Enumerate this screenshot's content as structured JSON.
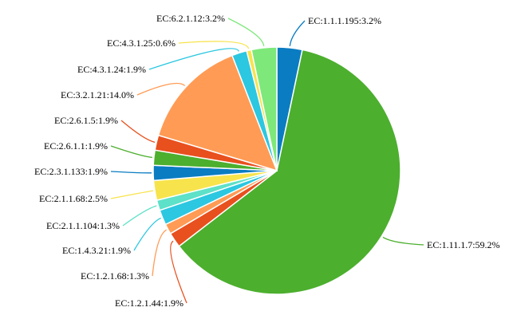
{
  "chart_data": {
    "type": "pie",
    "title": "",
    "start_angle_deg": 0,
    "direction": "clockwise",
    "slices": [
      {
        "label": "EC:1.1.1.195:3.2%",
        "value": 3.2,
        "color": "#0a7cc2"
      },
      {
        "label": "EC:1.11.1.7:59.2%",
        "value": 59.2,
        "color": "#4caf2e"
      },
      {
        "label": "EC:1.2.1.44:1.9%",
        "value": 1.9,
        "color": "#e8501e"
      },
      {
        "label": "EC:1.2.1.68:1.3%",
        "value": 1.3,
        "color": "#ff9b55"
      },
      {
        "label": "EC:1.4.3.21:1.9%",
        "value": 1.9,
        "color": "#2cc7e0"
      },
      {
        "label": "EC:2.1.1.104:1.3%",
        "value": 1.3,
        "color": "#5de1c8"
      },
      {
        "label": "EC:2.1.1.68:2.5%",
        "value": 2.5,
        "color": "#f7e34c"
      },
      {
        "label": "EC:2.3.1.133:1.9%",
        "value": 1.9,
        "color": "#0a7cc2"
      },
      {
        "label": "EC:2.6.1.1:1.9%",
        "value": 1.9,
        "color": "#4caf2e"
      },
      {
        "label": "EC:2.6.1.5:1.9%",
        "value": 1.9,
        "color": "#e8501e"
      },
      {
        "label": "EC:3.2.1.21:14.0%",
        "value": 14.0,
        "color": "#ff9b55"
      },
      {
        "label": "EC:4.3.1.24:1.9%",
        "value": 1.9,
        "color": "#dbd51c"
      },
      {
        "label": "EC:4.3.1.25:0.6%",
        "value": 0.6,
        "color": "#2cc7e0"
      },
      {
        "label": "EC:6.2.1.12:3.2%",
        "value": 3.2,
        "color": "#7ee87a"
      }
    ]
  }
}
